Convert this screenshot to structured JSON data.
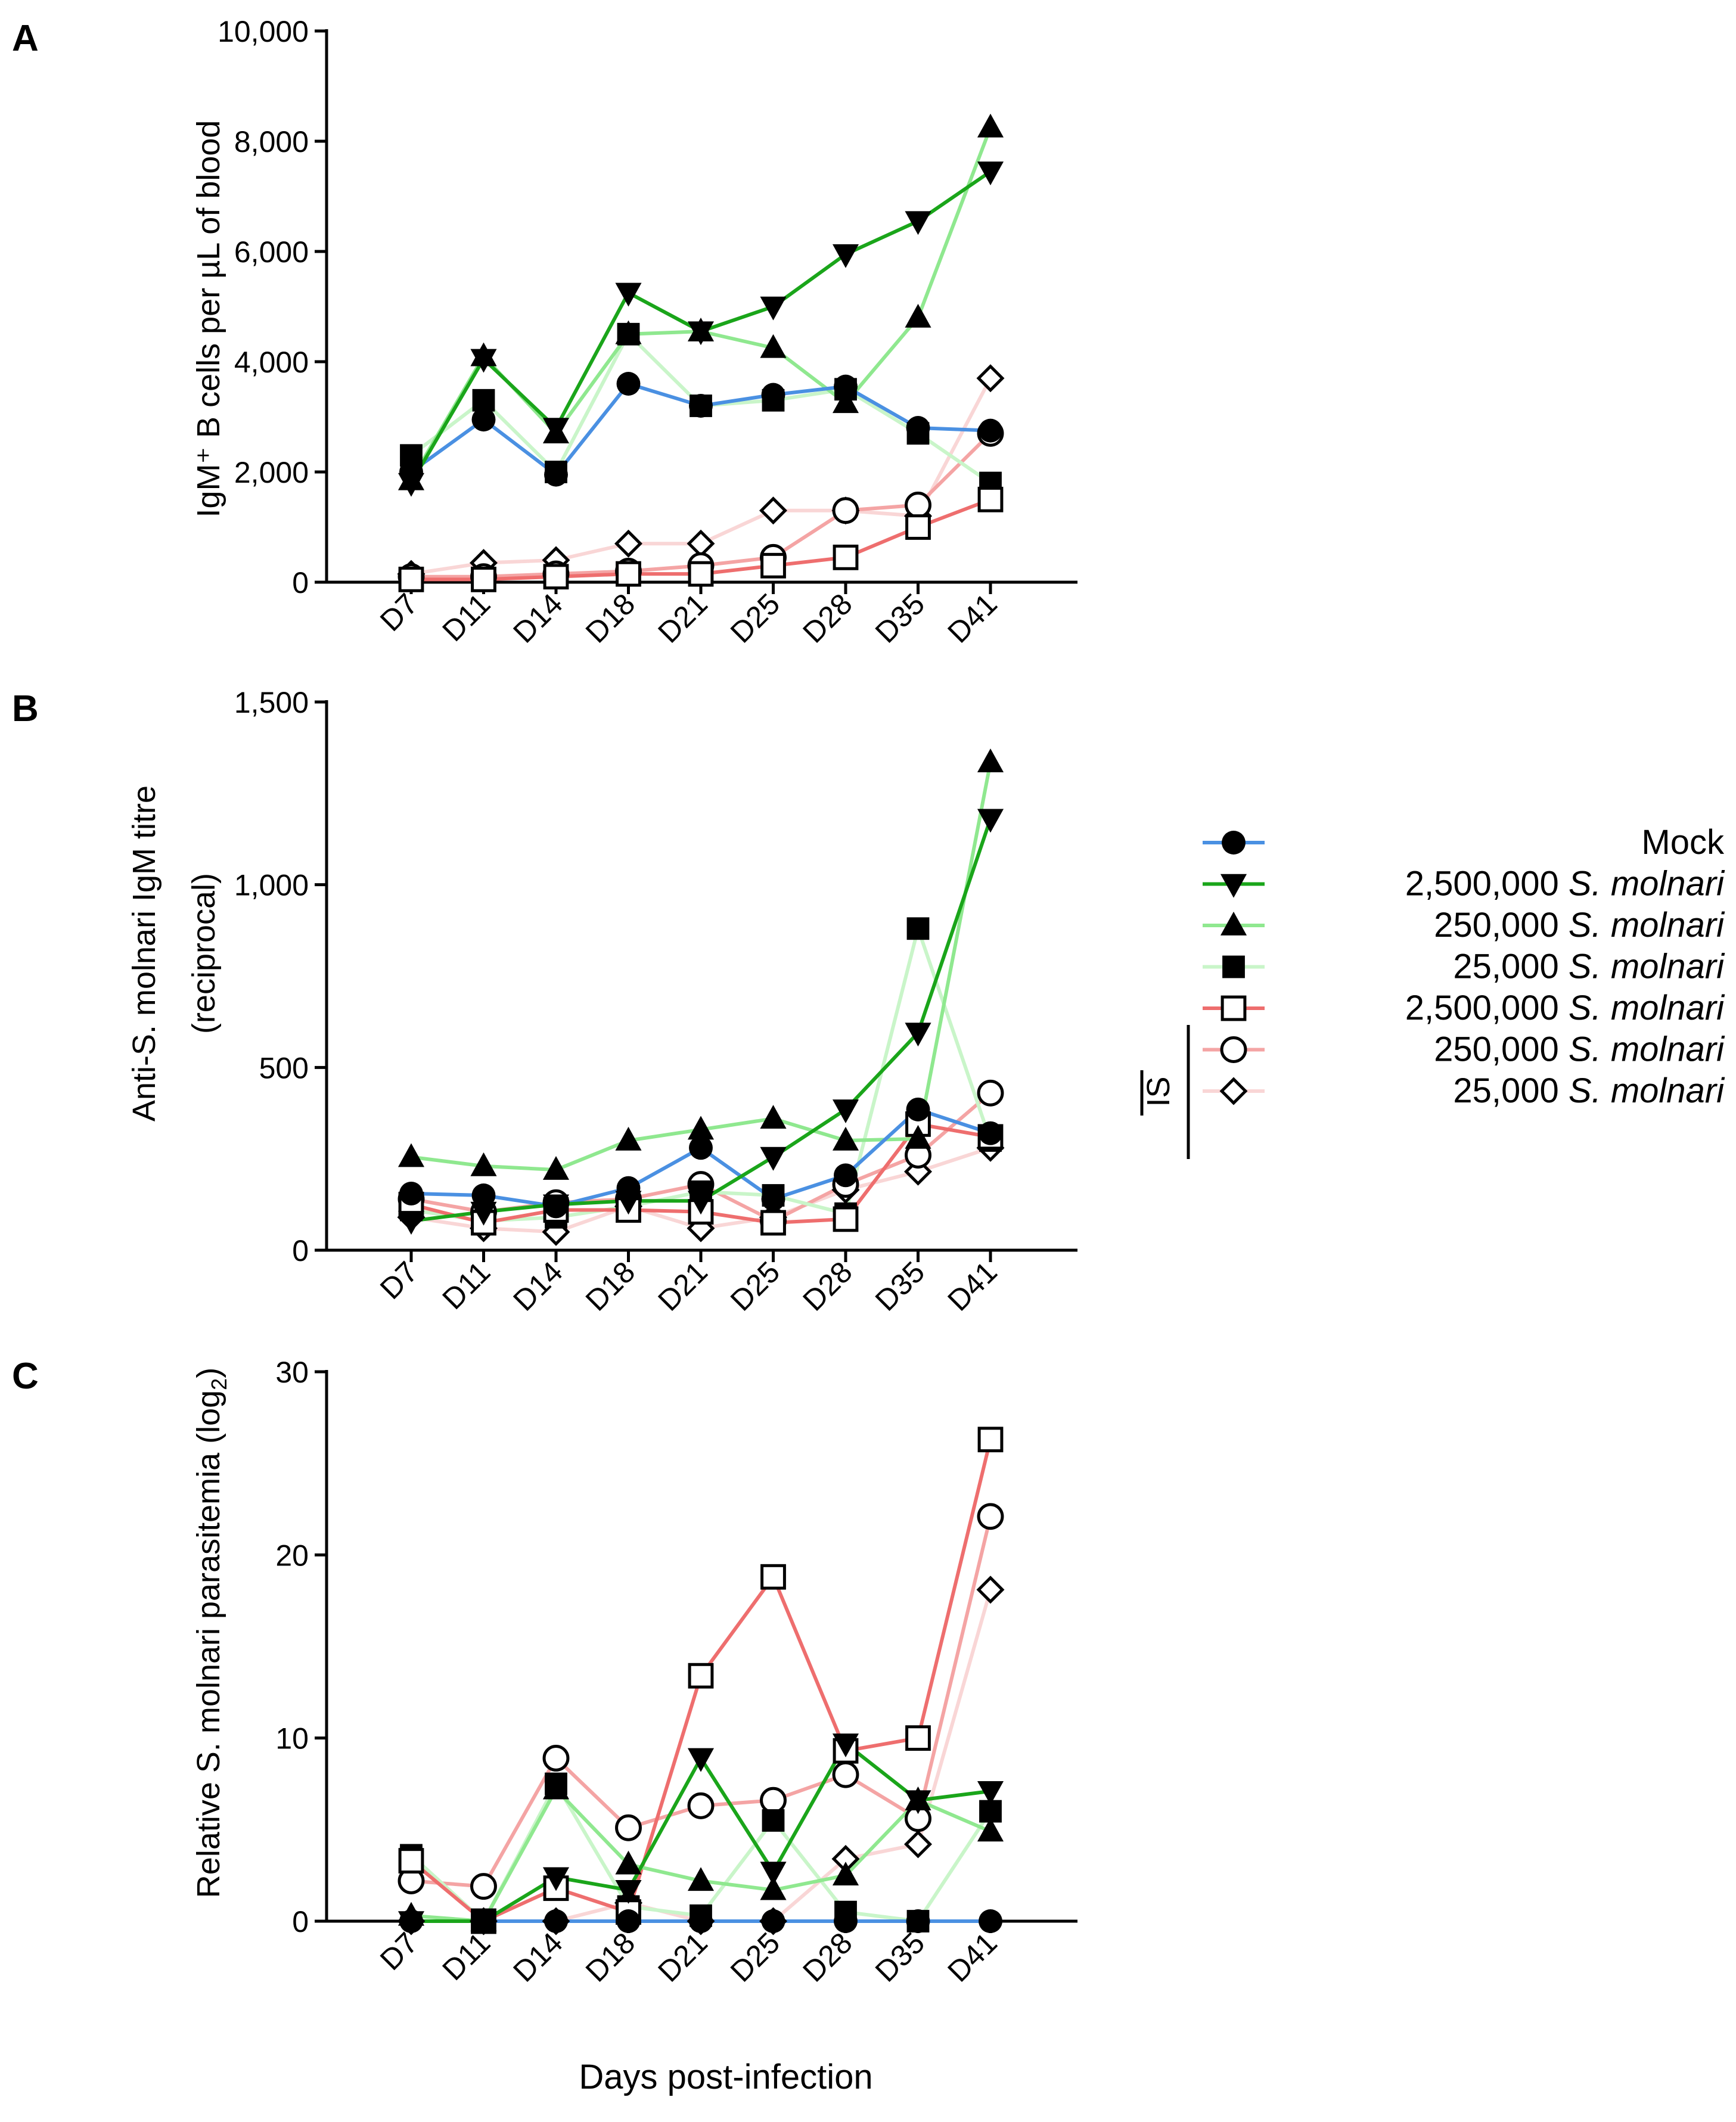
{
  "figure": {
    "xlabel": "Days post-infection",
    "legend": {
      "bracket_label": "IS",
      "entries": [
        {
          "series": "mock",
          "dose": "Mock",
          "species": ""
        },
        {
          "series": "d2500k",
          "dose": "2,500,000",
          "species": "S. molnari"
        },
        {
          "series": "d250k",
          "dose": "250,000",
          "species": "S. molnari"
        },
        {
          "series": "d25k",
          "dose": "25,000",
          "species": "S. molnari"
        },
        {
          "series": "is2500k",
          "dose": "2,500,000",
          "species": "S. molnari"
        },
        {
          "series": "is250k",
          "dose": "250,000",
          "species": "S. molnari"
        },
        {
          "series": "is25k",
          "dose": "25,000",
          "species": "S. molnari"
        }
      ]
    },
    "series_style": {
      "mock": {
        "color": "#4a90e2",
        "marker": "circle",
        "filled": true
      },
      "d2500k": {
        "color": "#1aa51a",
        "marker": "triangle-down",
        "filled": true
      },
      "d250k": {
        "color": "#8fe88f",
        "marker": "triangle-up",
        "filled": true
      },
      "d25k": {
        "color": "#c9f5c9",
        "marker": "square",
        "filled": true
      },
      "is2500k": {
        "color": "#ee6e6e",
        "marker": "square",
        "filled": false
      },
      "is250k": {
        "color": "#f4a4a4",
        "marker": "circle",
        "filled": false
      },
      "is25k": {
        "color": "#f9d6d6",
        "marker": "diamond",
        "filled": false
      }
    }
  },
  "chart_data": [
    {
      "panel": "A",
      "type": "line",
      "ylabel": "IgM⁺ B cells per µL of blood",
      "categories": [
        "D7",
        "D11",
        "D14",
        "D18",
        "D21",
        "D25",
        "D28",
        "D35",
        "D41"
      ],
      "ylim": [
        0,
        10000
      ],
      "yticks": [
        0,
        2000,
        4000,
        6000,
        8000,
        10000
      ],
      "yticklabels": [
        "0",
        "2,000",
        "4,000",
        "6,000",
        "8,000",
        "10,000"
      ],
      "series": [
        {
          "id": "mock",
          "values": [
            2000,
            2950,
            1950,
            3600,
            3200,
            3400,
            3550,
            2800,
            2750
          ]
        },
        {
          "id": "d2500k",
          "values": [
            1800,
            4050,
            2800,
            5250,
            4550,
            5000,
            5950,
            6550,
            7450
          ]
        },
        {
          "id": "d250k",
          "values": [
            1850,
            4100,
            2700,
            4500,
            4550,
            4250,
            3250,
            4800,
            8250
          ]
        },
        {
          "id": "d25k",
          "values": [
            2300,
            3300,
            2000,
            4500,
            3200,
            3300,
            3500,
            2700,
            1800
          ]
        },
        {
          "id": "is2500k",
          "values": [
            50,
            50,
            100,
            150,
            150,
            300,
            450,
            1000,
            1500
          ]
        },
        {
          "id": "is250k",
          "values": [
            100,
            100,
            150,
            200,
            300,
            450,
            1300,
            1400,
            2700
          ]
        },
        {
          "id": "is25k",
          "values": [
            150,
            350,
            400,
            700,
            700,
            1300,
            1300,
            1200,
            3700
          ]
        }
      ]
    },
    {
      "panel": "B",
      "type": "line",
      "ylabel_line1": "Anti-S. molnari IgM titre",
      "ylabel_line2": "(reciprocal)",
      "categories": [
        "D7",
        "D11",
        "D14",
        "D18",
        "D21",
        "D25",
        "D28",
        "D35",
        "D41"
      ],
      "ylim": [
        0,
        1500
      ],
      "yticks": [
        0,
        500,
        1000,
        1500
      ],
      "yticklabels": [
        "0",
        "500",
        "1,000",
        "1,500"
      ],
      "series": [
        {
          "id": "mock",
          "values": [
            155,
            150,
            120,
            170,
            280,
            140,
            205,
            385,
            320
          ]
        },
        {
          "id": "d2500k",
          "values": [
            80,
            105,
            125,
            135,
            135,
            255,
            385,
            595,
            1180
          ]
        },
        {
          "id": "d250k",
          "values": [
            255,
            230,
            220,
            300,
            330,
            360,
            300,
            305,
            1335
          ]
        },
        {
          "id": "d25k",
          "values": [
            110,
            80,
            90,
            120,
            160,
            150,
            100,
            880,
            300
          ]
        },
        {
          "id": "is2500k",
          "values": [
            125,
            75,
            110,
            110,
            105,
            75,
            85,
            345,
            310
          ]
        },
        {
          "id": "is250k",
          "values": [
            140,
            105,
            130,
            140,
            180,
            80,
            180,
            260,
            430
          ]
        },
        {
          "id": "is25k",
          "values": [
            90,
            60,
            50,
            120,
            60,
            90,
            165,
            215,
            280
          ]
        }
      ]
    },
    {
      "panel": "C",
      "type": "line",
      "ylabel_prefix": "Relative S. molnari parasitemia (log",
      "ylabel_sub": "2",
      "ylabel_suffix": ")",
      "categories": [
        "D7",
        "D11",
        "D14",
        "D18",
        "D21",
        "D25",
        "D28",
        "D35",
        "D41"
      ],
      "ylim": [
        0,
        30
      ],
      "yticks": [
        0,
        10,
        20,
        30
      ],
      "yticklabels": [
        "0",
        "10",
        "20",
        "30"
      ],
      "series": [
        {
          "id": "mock",
          "values": [
            0,
            0,
            0,
            0,
            0,
            0,
            0,
            0,
            0
          ]
        },
        {
          "id": "d2500k",
          "values": [
            0,
            0,
            2.4,
            1.7,
            8.9,
            2.7,
            9.7,
            6.6,
            7.1
          ]
        },
        {
          "id": "d250k",
          "values": [
            0.3,
            0,
            7.2,
            3.1,
            2.2,
            1.7,
            2.5,
            6.6,
            4.9
          ]
        },
        {
          "id": "d25k",
          "values": [
            3.6,
            0,
            7.5,
            0.8,
            0.3,
            5.5,
            0.5,
            0,
            6
          ]
        },
        {
          "id": "is2500k",
          "values": [
            3.3,
            0,
            1.8,
            0.5,
            13.4,
            18.8,
            9.3,
            10,
            26.3
          ]
        },
        {
          "id": "is250k",
          "values": [
            2.2,
            1.9,
            8.9,
            5.1,
            6.3,
            6.6,
            8,
            5.6,
            22.1
          ]
        },
        {
          "id": "is25k",
          "values": [
            0,
            0,
            0,
            1,
            0,
            0,
            3.4,
            4.2,
            18.1
          ]
        }
      ]
    }
  ]
}
